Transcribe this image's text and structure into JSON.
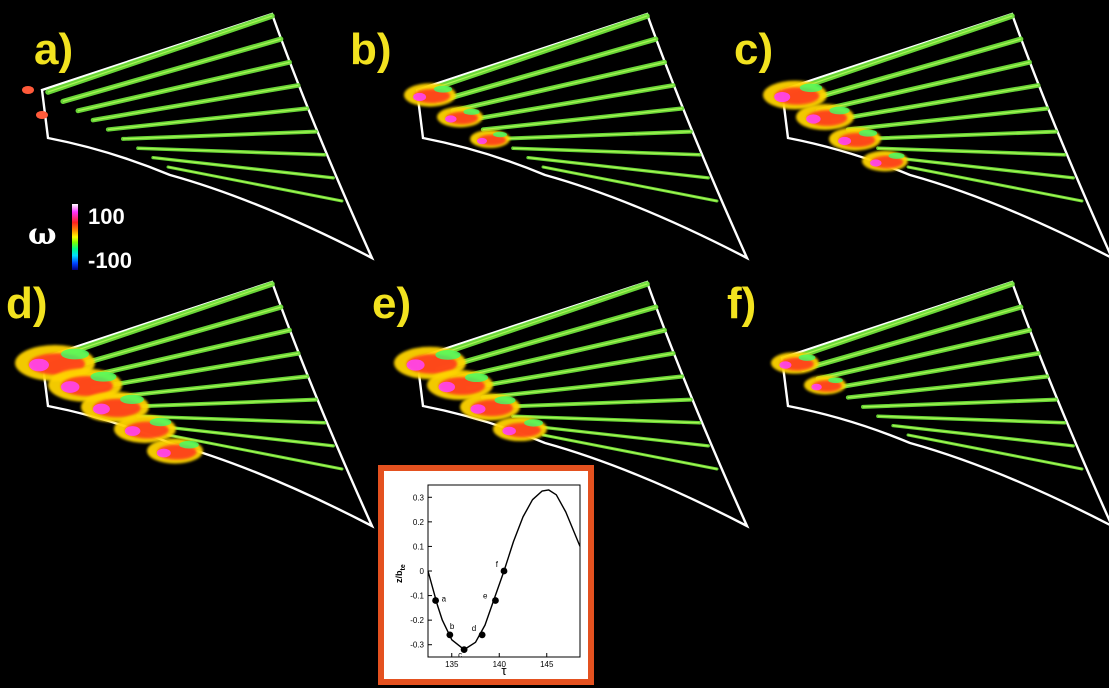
{
  "panels": [
    {
      "label": "a)"
    },
    {
      "label": "b)"
    },
    {
      "label": "c)"
    },
    {
      "label": "d)"
    },
    {
      "label": "e)"
    },
    {
      "label": "f)"
    }
  ],
  "legend": {
    "symbol": "ω",
    "max_label": "100",
    "min_label": "-100",
    "colors": [
      "#ffffff",
      "#ff33ff",
      "#ff2020",
      "#ff8c00",
      "#ffff00",
      "#7fff00",
      "#00e0ff",
      "#0040ff",
      "#000080"
    ]
  },
  "inset": {
    "border_color": "#e4511f",
    "y_ticks": [
      "0.3",
      "0.2",
      "0.1",
      "0",
      "-0.1",
      "-0.2",
      "-0.3"
    ],
    "x_ticks": [
      "135",
      "140",
      "145"
    ],
    "ylabel_main": "z/b",
    "ylabel_sub": "te",
    "xlabel": "τ",
    "point_labels": [
      "a",
      "b",
      "c",
      "d",
      "e",
      "f"
    ]
  },
  "chart_data": {
    "type": "line",
    "title": "",
    "xlabel": "τ",
    "ylabel": "z/b_te",
    "xlim": [
      132.5,
      148.5
    ],
    "ylim": [
      -0.35,
      0.35
    ],
    "series": [
      {
        "values_x": [
          132.5,
          133.5,
          134.0,
          135.0,
          136.3,
          137.5,
          138.5,
          139.5,
          140.5,
          141.5,
          142.5,
          143.5,
          144.5,
          145.2,
          146.0,
          147.0,
          148.5
        ],
        "values_y": [
          0.0,
          -0.14,
          -0.2,
          -0.28,
          -0.32,
          -0.29,
          -0.22,
          -0.11,
          0.0,
          0.12,
          0.22,
          0.29,
          0.325,
          0.33,
          0.31,
          0.24,
          0.1
        ]
      }
    ],
    "points": [
      {
        "label": "a",
        "x": 133.3,
        "y": -0.12
      },
      {
        "label": "b",
        "x": 134.8,
        "y": -0.26
      },
      {
        "label": "c",
        "x": 136.3,
        "y": -0.32
      },
      {
        "label": "d",
        "x": 138.2,
        "y": -0.26
      },
      {
        "label": "e",
        "x": 139.6,
        "y": -0.12
      },
      {
        "label": "f",
        "x": 140.5,
        "y": 0.0
      }
    ]
  }
}
